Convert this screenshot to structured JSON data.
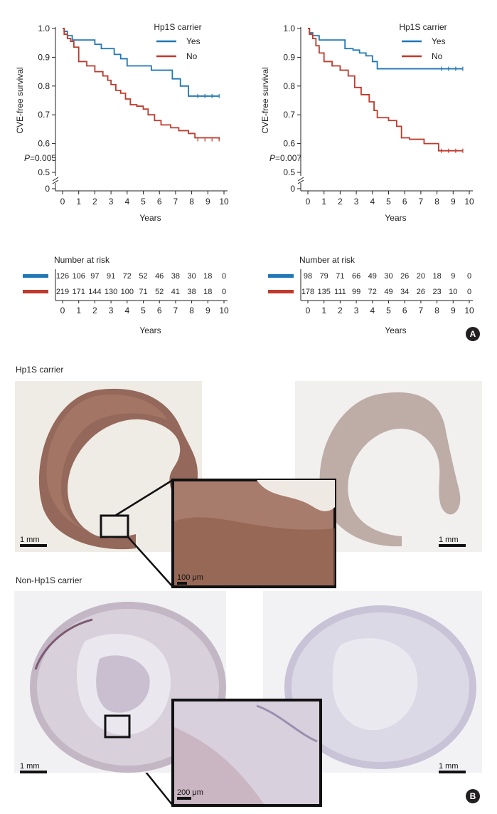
{
  "panel_labels": {
    "a": "A",
    "b": "B"
  },
  "section_labels": {
    "hp1s": "Hp1S carrier",
    "non_hp1s": "Non-Hp1S carrier"
  },
  "scale_bars": {
    "one_mm": "1 mm",
    "hundred_um": "100 μm",
    "two_hundred_um": "200 μm"
  },
  "colors": {
    "yes": "#1f77b4",
    "no": "#c0392b",
    "axis": "#231f20"
  },
  "chart_data": [
    {
      "type": "line",
      "ylabel": "CVE-free survival",
      "xlabel": "Years",
      "xlim": [
        0,
        10
      ],
      "ylim": [
        0.5,
        1.0
      ],
      "xticks": [
        "0",
        "1",
        "2",
        "3",
        "4",
        "5",
        "6",
        "7",
        "8",
        "9",
        "10"
      ],
      "yticks": [
        "0.5",
        "0.6",
        "0.7",
        "0.8",
        "0.9",
        "1.0"
      ],
      "y_origin_label": "0",
      "legend_title": "Hp1S carrier",
      "legend_position": "top-right",
      "annotation": {
        "p_letter": "P",
        "p_value": "=0.005"
      },
      "series": [
        {
          "name": "Yes",
          "color": "#1f77b4",
          "x": [
            0,
            0.1,
            0.3,
            0.6,
            1.0,
            2.0,
            2.4,
            3.2,
            3.6,
            4.0,
            5.5,
            6.8,
            7.3,
            7.8,
            9.7
          ],
          "y": [
            1.0,
            0.99,
            0.975,
            0.96,
            0.96,
            0.945,
            0.93,
            0.91,
            0.895,
            0.87,
            0.855,
            0.825,
            0.8,
            0.765,
            0.765
          ]
        },
        {
          "name": "No",
          "color": "#c0392b",
          "x": [
            0,
            0.1,
            0.3,
            0.5,
            0.7,
            1.0,
            1.5,
            2.0,
            2.5,
            2.8,
            3.0,
            3.3,
            3.6,
            3.9,
            4.2,
            4.6,
            5.0,
            5.3,
            5.7,
            6.1,
            6.7,
            7.2,
            7.8,
            8.2,
            9.7
          ],
          "y": [
            1.0,
            0.98,
            0.965,
            0.955,
            0.935,
            0.885,
            0.87,
            0.85,
            0.835,
            0.82,
            0.805,
            0.785,
            0.775,
            0.755,
            0.735,
            0.73,
            0.72,
            0.7,
            0.68,
            0.665,
            0.655,
            0.645,
            0.635,
            0.62,
            0.615
          ]
        }
      ],
      "risk_table": {
        "title": "Number at risk",
        "xlabel": "Years",
        "ticks": [
          "0",
          "1",
          "2",
          "3",
          "4",
          "5",
          "6",
          "7",
          "8",
          "9",
          "10"
        ],
        "rows": [
          {
            "series": "Yes",
            "values": [
              "126",
              "106",
              "97",
              "91",
              "72",
              "52",
              "46",
              "38",
              "30",
              "18",
              "0"
            ]
          },
          {
            "series": "No",
            "values": [
              "219",
              "171",
              "144",
              "130",
              "100",
              "71",
              "52",
              "41",
              "38",
              "18",
              "0"
            ]
          }
        ]
      }
    },
    {
      "type": "line",
      "ylabel": "CVE-free survival",
      "xlabel": "Years",
      "xlim": [
        0,
        10
      ],
      "ylim": [
        0.5,
        1.0
      ],
      "xticks": [
        "0",
        "1",
        "2",
        "3",
        "4",
        "5",
        "6",
        "7",
        "8",
        "9",
        "10"
      ],
      "yticks": [
        "0.5",
        "0.6",
        "0.7",
        "0.8",
        "0.9",
        "1.0"
      ],
      "y_origin_label": "0",
      "legend_title": "Hp1S carrier",
      "legend_position": "top-right",
      "annotation": {
        "p_letter": "P",
        "p_value": "=0.007"
      },
      "series": [
        {
          "name": "Yes",
          "color": "#1f77b4",
          "x": [
            0,
            0.1,
            0.3,
            0.7,
            1.0,
            2.3,
            2.8,
            3.2,
            3.6,
            4.0,
            4.3,
            9.6
          ],
          "y": [
            1.0,
            0.985,
            0.975,
            0.96,
            0.96,
            0.93,
            0.925,
            0.915,
            0.905,
            0.885,
            0.86,
            0.86
          ]
        },
        {
          "name": "No",
          "color": "#c0392b",
          "x": [
            0,
            0.1,
            0.3,
            0.5,
            0.7,
            1.0,
            1.5,
            2.0,
            2.5,
            2.9,
            3.3,
            3.8,
            4.1,
            4.3,
            5.0,
            5.5,
            5.8,
            6.3,
            7.2,
            8.1,
            9.6
          ],
          "y": [
            1.0,
            0.98,
            0.965,
            0.94,
            0.915,
            0.885,
            0.87,
            0.855,
            0.835,
            0.795,
            0.77,
            0.745,
            0.715,
            0.69,
            0.68,
            0.66,
            0.62,
            0.615,
            0.6,
            0.575,
            0.575
          ]
        }
      ],
      "risk_table": {
        "title": "Number at risk",
        "xlabel": "Years",
        "ticks": [
          "0",
          "1",
          "2",
          "3",
          "4",
          "5",
          "6",
          "7",
          "8",
          "9",
          "10"
        ],
        "rows": [
          {
            "series": "Yes",
            "values": [
              "98",
              "79",
              "71",
              "66",
              "49",
              "30",
              "26",
              "20",
              "18",
              "9",
              "0"
            ]
          },
          {
            "series": "No",
            "values": [
              "178",
              "135",
              "111",
              "99",
              "72",
              "49",
              "34",
              "26",
              "23",
              "10",
              "0"
            ]
          }
        ]
      }
    }
  ]
}
